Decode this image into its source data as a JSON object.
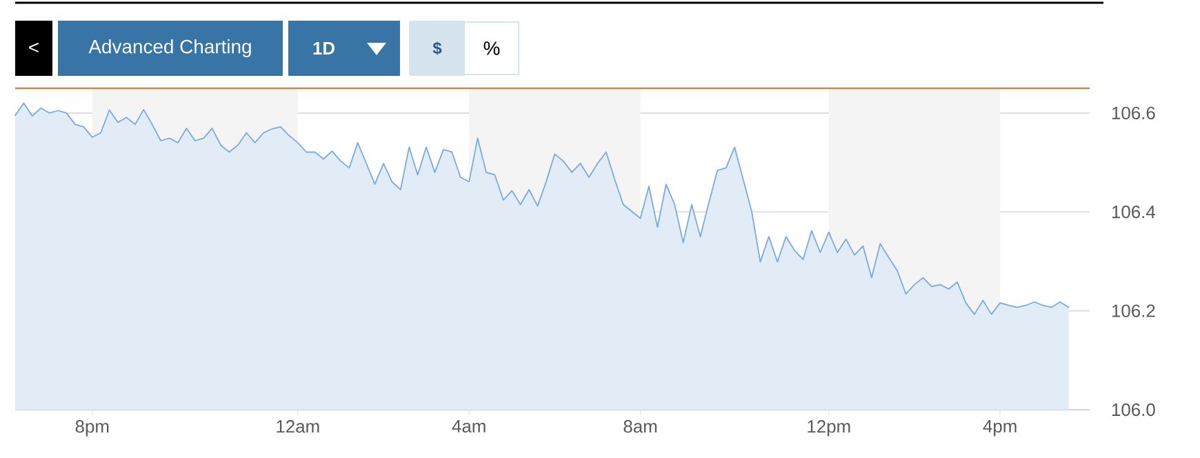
{
  "chart_data": {
    "type": "area",
    "annotations": [
      "<",
      "Advanced Charting",
      "1D",
      "$",
      "%"
    ],
    "categories": [
      null,
      null,
      null,
      null,
      null,
      null,
      null,
      null,
      null,
      "8pm",
      null,
      null,
      null,
      null,
      null,
      null,
      null,
      null,
      null,
      null,
      null,
      null,
      null,
      null,
      null,
      null,
      null,
      null,
      null,
      null,
      null,
      null,
      null,
      "12am",
      null,
      null,
      null,
      null,
      null,
      null,
      null,
      null,
      null,
      null,
      null,
      null,
      null,
      null,
      null,
      null,
      null,
      null,
      null,
      "4am",
      null,
      null,
      null,
      null,
      null,
      null,
      null,
      null,
      null,
      null,
      null,
      null,
      null,
      null,
      null,
      null,
      null,
      null,
      null,
      "8am",
      null,
      null,
      null,
      null,
      null,
      null,
      null,
      null,
      null,
      null,
      null,
      null,
      null,
      null,
      null,
      null,
      null,
      null,
      null,
      null,
      null,
      "12pm",
      null,
      null,
      null,
      null,
      null,
      null,
      null,
      null,
      null,
      null,
      null,
      null,
      null,
      null,
      null,
      null,
      null,
      null,
      null,
      "4pm",
      null,
      null,
      null,
      null,
      null,
      null,
      null,
      null
    ],
    "series": [
      {
        "color": "#7aaadb",
        "values": [
          106.595,
          106.62,
          106.594,
          106.61,
          106.6,
          106.605,
          106.6,
          106.577,
          106.572,
          106.551,
          106.56,
          106.606,
          106.581,
          106.591,
          106.577,
          106.607,
          106.577,
          106.544,
          106.549,
          106.54,
          106.569,
          106.544,
          106.549,
          106.569,
          106.535,
          106.521,
          106.535,
          106.56,
          106.54,
          106.56,
          106.568,
          106.572,
          106.554,
          106.54,
          106.521,
          106.521,
          106.507,
          106.523,
          106.503,
          106.489,
          106.54,
          106.498,
          106.456,
          106.498,
          106.461,
          106.445,
          106.531,
          106.475,
          106.531,
          106.48,
          106.526,
          106.521,
          106.47,
          106.461,
          106.549,
          106.48,
          106.475,
          106.424,
          106.443,
          106.415,
          106.445,
          106.412,
          106.461,
          106.517,
          106.503,
          106.48,
          106.498,
          106.47,
          106.498,
          106.521,
          106.466,
          106.415,
          106.401,
          106.387,
          106.452,
          106.369,
          106.456,
          106.415,
          106.338,
          106.415,
          106.35,
          106.419,
          106.484,
          106.489,
          106.531,
          106.466,
          106.401,
          106.299,
          106.35,
          106.299,
          106.35,
          106.322,
          106.304,
          106.362,
          106.318,
          106.359,
          106.318,
          106.345,
          106.313,
          106.331,
          106.267,
          106.336,
          106.308,
          106.281,
          106.234,
          106.253,
          106.267,
          106.249,
          106.253,
          106.244,
          106.258,
          106.216,
          106.193,
          106.221,
          106.193,
          106.216,
          106.211,
          106.207,
          106.211,
          106.218,
          106.211,
          106.207,
          106.218,
          106.207
        ]
      }
    ],
    "ylim": [
      106.0,
      106.65
    ],
    "yticks": [
      {
        "value": 106.0,
        "label": "106.0"
      },
      {
        "value": 106.2,
        "label": "106.2"
      },
      {
        "value": 106.4,
        "label": "106.4"
      },
      {
        "value": 106.6,
        "label": "106.6"
      }
    ],
    "grid": "y",
    "ref_lines": [
      {
        "axis": "y",
        "value": 106.65,
        "color": "#c8864f"
      }
    ],
    "bands": [
      {
        "axis": "x",
        "from": "8pm",
        "to": "12am",
        "color": "#f4f4f4"
      },
      {
        "axis": "x",
        "from": "4am",
        "to": "8am",
        "color": "#f4f4f4"
      },
      {
        "axis": "x",
        "from": "12pm",
        "to": "4pm",
        "color": "#f4f4f4"
      }
    ]
  }
}
